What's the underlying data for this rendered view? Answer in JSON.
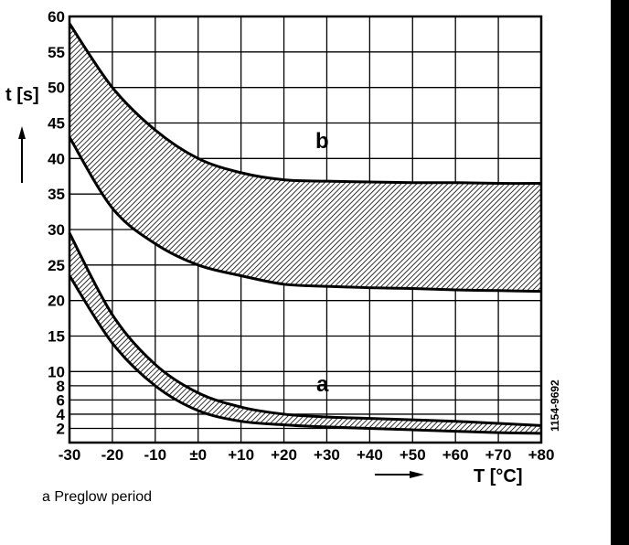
{
  "chart_data": {
    "type": "area",
    "title": "",
    "xlabel": "T [°C]",
    "ylabel": "t [s]",
    "xlim": [
      -30,
      80
    ],
    "ylim": [
      0,
      60
    ],
    "x_ticks": [
      -30,
      -20,
      -10,
      0,
      10,
      20,
      30,
      40,
      50,
      60,
      70,
      80
    ],
    "x_tick_labels": [
      "-30",
      "-20",
      "-10",
      "±0",
      "+10",
      "+20",
      "+30",
      "+40",
      "+50",
      "+60",
      "+70",
      "+80"
    ],
    "y_ticks": [
      2,
      4,
      6,
      8,
      10,
      15,
      20,
      25,
      30,
      35,
      40,
      45,
      50,
      55,
      60
    ],
    "y_tick_labels": [
      "2",
      "4",
      "6",
      "8",
      "10",
      "15",
      "20",
      "25",
      "30",
      "35",
      "40",
      "45",
      "50",
      "55",
      "60"
    ],
    "grid": true,
    "x": [
      -30,
      -20,
      -10,
      0,
      10,
      20,
      30,
      40,
      50,
      60,
      70,
      80
    ],
    "series": [
      {
        "name": "b",
        "upper": [
          59,
          50,
          44,
          40,
          38,
          37,
          36.8,
          36.7,
          36.6,
          36.6,
          36.5,
          36.5
        ],
        "lower": [
          43,
          33,
          28,
          25,
          23.5,
          22.3,
          22,
          21.8,
          21.7,
          21.5,
          21.4,
          21.3
        ]
      },
      {
        "name": "a",
        "upper": [
          29.5,
          18,
          11,
          7,
          5,
          4,
          3.6,
          3.4,
          3.2,
          3,
          2.7,
          2.4
        ],
        "lower": [
          23.5,
          14,
          8,
          4.5,
          3,
          2.5,
          2.2,
          2,
          1.8,
          1.6,
          1.4,
          1.3
        ]
      }
    ],
    "annotations": [
      "b",
      "a",
      "1154-9692"
    ],
    "legend": "a  Preglow period"
  }
}
